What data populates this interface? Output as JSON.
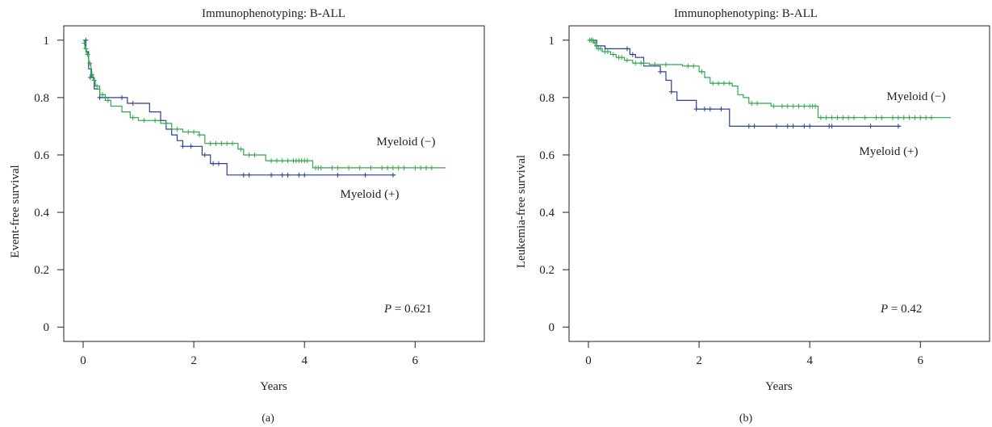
{
  "chart_data": [
    {
      "panel_label": "(a)",
      "type": "line",
      "title": "Immunophenotyping: B-ALL",
      "xlabel": "Years",
      "ylabel": "Event-free survival",
      "xlim": [
        -0.35,
        7.25
      ],
      "ylim": [
        -0.05,
        1.05
      ],
      "xticks": [
        "0",
        "2",
        "4",
        "6"
      ],
      "yticks": [
        "0",
        "0.2",
        "0.4",
        "0.6",
        "0.8",
        "1"
      ],
      "annotation": {
        "label": "P",
        "value": " = 0.621"
      },
      "series_labels": {
        "myeloid_neg": "Myeloid (−)",
        "myeloid_pos": "Myeloid (+)"
      },
      "series": [
        {
          "name": "Myeloid (+)",
          "color": "#2b3f94",
          "steps": [
            [
              0,
              1.0
            ],
            [
              0.05,
              0.96
            ],
            [
              0.1,
              0.9
            ],
            [
              0.15,
              0.87
            ],
            [
              0.2,
              0.83
            ],
            [
              0.3,
              0.8
            ],
            [
              0.8,
              0.78
            ],
            [
              1.2,
              0.75
            ],
            [
              1.4,
              0.72
            ],
            [
              1.5,
              0.69
            ],
            [
              1.6,
              0.67
            ],
            [
              1.7,
              0.65
            ],
            [
              1.8,
              0.63
            ],
            [
              2.15,
              0.6
            ],
            [
              2.3,
              0.57
            ],
            [
              2.6,
              0.53
            ],
            [
              5.65,
              0.53
            ]
          ],
          "censors": [
            [
              0.05,
              1.0
            ],
            [
              0.13,
              0.87
            ],
            [
              0.3,
              0.8
            ],
            [
              0.7,
              0.8
            ],
            [
              0.9,
              0.78
            ],
            [
              1.4,
              0.72
            ],
            [
              1.8,
              0.63
            ],
            [
              1.95,
              0.63
            ],
            [
              2.2,
              0.6
            ],
            [
              2.35,
              0.57
            ],
            [
              2.45,
              0.57
            ],
            [
              2.9,
              0.53
            ],
            [
              3.0,
              0.53
            ],
            [
              3.4,
              0.53
            ],
            [
              3.6,
              0.53
            ],
            [
              3.7,
              0.53
            ],
            [
              3.9,
              0.53
            ],
            [
              4.0,
              0.53
            ],
            [
              4.6,
              0.53
            ],
            [
              5.1,
              0.53
            ],
            [
              5.6,
              0.53
            ]
          ]
        },
        {
          "name": "Myeloid (−)",
          "color": "#2ea84a",
          "steps": [
            [
              0,
              1.0
            ],
            [
              0.03,
              0.97
            ],
            [
              0.06,
              0.95
            ],
            [
              0.1,
              0.92
            ],
            [
              0.14,
              0.88
            ],
            [
              0.18,
              0.86
            ],
            [
              0.22,
              0.84
            ],
            [
              0.3,
              0.81
            ],
            [
              0.4,
              0.79
            ],
            [
              0.5,
              0.77
            ],
            [
              0.7,
              0.75
            ],
            [
              0.85,
              0.73
            ],
            [
              1.0,
              0.72
            ],
            [
              1.4,
              0.71
            ],
            [
              1.6,
              0.69
            ],
            [
              1.8,
              0.68
            ],
            [
              2.1,
              0.67
            ],
            [
              2.2,
              0.64
            ],
            [
              2.8,
              0.62
            ],
            [
              2.9,
              0.6
            ],
            [
              3.3,
              0.58
            ],
            [
              4.15,
              0.555
            ],
            [
              6.55,
              0.555
            ]
          ],
          "censors": [
            [
              0.02,
              0.99
            ],
            [
              0.05,
              0.97
            ],
            [
              0.08,
              0.95
            ],
            [
              0.12,
              0.92
            ],
            [
              0.16,
              0.88
            ],
            [
              0.2,
              0.86
            ],
            [
              0.25,
              0.84
            ],
            [
              0.35,
              0.81
            ],
            [
              0.45,
              0.79
            ],
            [
              0.9,
              0.73
            ],
            [
              1.1,
              0.72
            ],
            [
              1.3,
              0.72
            ],
            [
              1.5,
              0.71
            ],
            [
              1.7,
              0.69
            ],
            [
              1.9,
              0.68
            ],
            [
              2.0,
              0.68
            ],
            [
              2.1,
              0.67
            ],
            [
              2.3,
              0.64
            ],
            [
              2.4,
              0.64
            ],
            [
              2.5,
              0.64
            ],
            [
              2.6,
              0.64
            ],
            [
              2.7,
              0.64
            ],
            [
              2.85,
              0.62
            ],
            [
              3.0,
              0.6
            ],
            [
              3.1,
              0.6
            ],
            [
              3.4,
              0.58
            ],
            [
              3.5,
              0.58
            ],
            [
              3.6,
              0.58
            ],
            [
              3.7,
              0.58
            ],
            [
              3.8,
              0.58
            ],
            [
              3.85,
              0.58
            ],
            [
              3.9,
              0.58
            ],
            [
              3.95,
              0.58
            ],
            [
              4.0,
              0.58
            ],
            [
              4.05,
              0.58
            ],
            [
              4.2,
              0.555
            ],
            [
              4.25,
              0.555
            ],
            [
              4.3,
              0.555
            ],
            [
              4.5,
              0.555
            ],
            [
              4.6,
              0.555
            ],
            [
              4.8,
              0.555
            ],
            [
              5.0,
              0.555
            ],
            [
              5.2,
              0.555
            ],
            [
              5.4,
              0.555
            ],
            [
              5.5,
              0.555
            ],
            [
              5.6,
              0.555
            ],
            [
              5.7,
              0.555
            ],
            [
              5.8,
              0.555
            ],
            [
              6.0,
              0.555
            ],
            [
              6.1,
              0.555
            ],
            [
              6.2,
              0.555
            ],
            [
              6.3,
              0.555
            ]
          ]
        }
      ]
    },
    {
      "panel_label": "(b)",
      "type": "line",
      "title": "Immunophenotyping: B-ALL",
      "xlabel": "Years",
      "ylabel": "Leukemia-free survival",
      "xlim": [
        -0.35,
        7.25
      ],
      "ylim": [
        -0.05,
        1.05
      ],
      "xticks": [
        "0",
        "2",
        "4",
        "6"
      ],
      "yticks": [
        "0",
        "0.2",
        "0.4",
        "0.6",
        "0.8",
        "1"
      ],
      "annotation": {
        "label": "P",
        "value": " = 0.42"
      },
      "series_labels": {
        "myeloid_neg": "Myeloid (−)",
        "myeloid_pos": "Myeloid (+)"
      },
      "series": [
        {
          "name": "Myeloid (+)",
          "color": "#2b3f94",
          "steps": [
            [
              0,
              1.0
            ],
            [
              0.15,
              0.98
            ],
            [
              0.3,
              0.97
            ],
            [
              0.75,
              0.95
            ],
            [
              0.85,
              0.94
            ],
            [
              1.0,
              0.91
            ],
            [
              1.3,
              0.89
            ],
            [
              1.4,
              0.86
            ],
            [
              1.5,
              0.82
            ],
            [
              1.6,
              0.79
            ],
            [
              1.95,
              0.76
            ],
            [
              2.55,
              0.7
            ],
            [
              5.65,
              0.7
            ]
          ],
          "censors": [
            [
              0.05,
              1.0
            ],
            [
              0.15,
              0.98
            ],
            [
              0.7,
              0.97
            ],
            [
              0.8,
              0.95
            ],
            [
              1.3,
              0.89
            ],
            [
              1.5,
              0.82
            ],
            [
              1.95,
              0.76
            ],
            [
              2.1,
              0.76
            ],
            [
              2.2,
              0.76
            ],
            [
              2.4,
              0.76
            ],
            [
              2.9,
              0.7
            ],
            [
              3.0,
              0.7
            ],
            [
              3.4,
              0.7
            ],
            [
              3.6,
              0.7
            ],
            [
              3.7,
              0.7
            ],
            [
              3.9,
              0.7
            ],
            [
              4.0,
              0.7
            ],
            [
              4.35,
              0.7
            ],
            [
              4.4,
              0.7
            ],
            [
              5.1,
              0.7
            ],
            [
              5.6,
              0.7
            ]
          ]
        },
        {
          "name": "Myeloid (−)",
          "color": "#2ea84a",
          "steps": [
            [
              0,
              1.0
            ],
            [
              0.1,
              0.99
            ],
            [
              0.15,
              0.97
            ],
            [
              0.25,
              0.96
            ],
            [
              0.4,
              0.95
            ],
            [
              0.5,
              0.94
            ],
            [
              0.65,
              0.93
            ],
            [
              0.8,
              0.92
            ],
            [
              1.1,
              0.915
            ],
            [
              1.7,
              0.91
            ],
            [
              2.0,
              0.89
            ],
            [
              2.1,
              0.87
            ],
            [
              2.2,
              0.85
            ],
            [
              2.6,
              0.84
            ],
            [
              2.7,
              0.81
            ],
            [
              2.8,
              0.8
            ],
            [
              2.9,
              0.78
            ],
            [
              3.3,
              0.77
            ],
            [
              4.15,
              0.73
            ],
            [
              6.55,
              0.73
            ]
          ],
          "censors": [
            [
              0.02,
              1.0
            ],
            [
              0.05,
              1.0
            ],
            [
              0.08,
              1.0
            ],
            [
              0.12,
              0.99
            ],
            [
              0.18,
              0.97
            ],
            [
              0.22,
              0.97
            ],
            [
              0.3,
              0.96
            ],
            [
              0.35,
              0.96
            ],
            [
              0.45,
              0.95
            ],
            [
              0.55,
              0.94
            ],
            [
              0.6,
              0.94
            ],
            [
              0.7,
              0.93
            ],
            [
              0.85,
              0.92
            ],
            [
              0.95,
              0.92
            ],
            [
              1.0,
              0.92
            ],
            [
              1.2,
              0.915
            ],
            [
              1.4,
              0.915
            ],
            [
              1.8,
              0.91
            ],
            [
              1.9,
              0.91
            ],
            [
              2.05,
              0.89
            ],
            [
              2.25,
              0.85
            ],
            [
              2.35,
              0.85
            ],
            [
              2.45,
              0.85
            ],
            [
              2.55,
              0.85
            ],
            [
              2.95,
              0.78
            ],
            [
              3.05,
              0.78
            ],
            [
              3.35,
              0.77
            ],
            [
              3.5,
              0.77
            ],
            [
              3.6,
              0.77
            ],
            [
              3.7,
              0.77
            ],
            [
              3.8,
              0.77
            ],
            [
              3.9,
              0.77
            ],
            [
              4.0,
              0.77
            ],
            [
              4.05,
              0.77
            ],
            [
              4.1,
              0.77
            ],
            [
              4.2,
              0.73
            ],
            [
              4.3,
              0.73
            ],
            [
              4.4,
              0.73
            ],
            [
              4.5,
              0.73
            ],
            [
              4.6,
              0.73
            ],
            [
              4.7,
              0.73
            ],
            [
              4.8,
              0.73
            ],
            [
              5.0,
              0.73
            ],
            [
              5.2,
              0.73
            ],
            [
              5.3,
              0.73
            ],
            [
              5.5,
              0.73
            ],
            [
              5.6,
              0.73
            ],
            [
              5.7,
              0.73
            ],
            [
              5.8,
              0.73
            ],
            [
              5.9,
              0.73
            ],
            [
              6.0,
              0.73
            ],
            [
              6.1,
              0.73
            ],
            [
              6.2,
              0.73
            ]
          ]
        }
      ]
    }
  ]
}
